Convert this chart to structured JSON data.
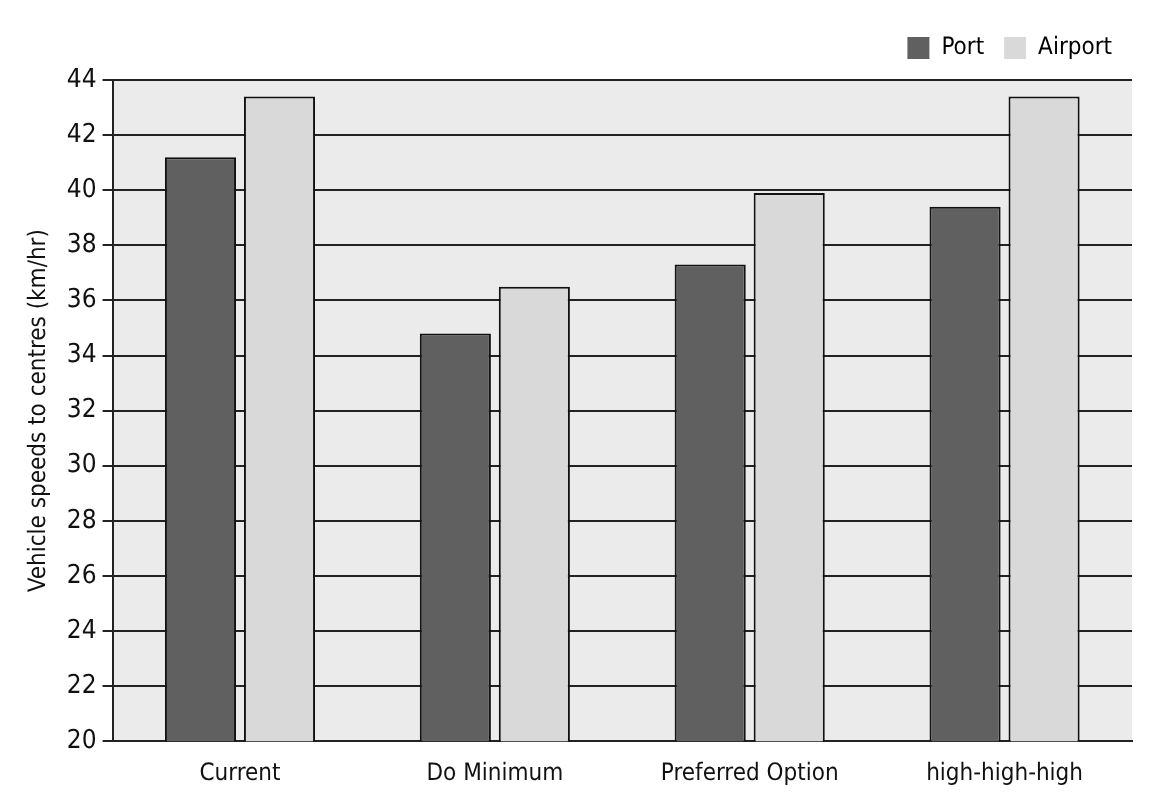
{
  "chart_data": {
    "type": "bar",
    "ylabel": "Vehicle speeds to centres (km/hr)",
    "categories": [
      "Current",
      "Do Minimum",
      "Preferred Option",
      "high-high-high"
    ],
    "series": [
      {
        "name": "Port",
        "color": "#606060",
        "values": [
          41.2,
          34.8,
          37.3,
          39.4
        ]
      },
      {
        "name": "Airport",
        "color": "#d9d9d9",
        "values": [
          43.4,
          36.5,
          39.9,
          43.4
        ]
      }
    ],
    "ylim": [
      20,
      44
    ],
    "yticks": [
      20,
      22,
      24,
      26,
      28,
      30,
      32,
      34,
      36,
      38,
      40,
      42,
      44
    ],
    "grid": "y",
    "legend": "top right"
  }
}
